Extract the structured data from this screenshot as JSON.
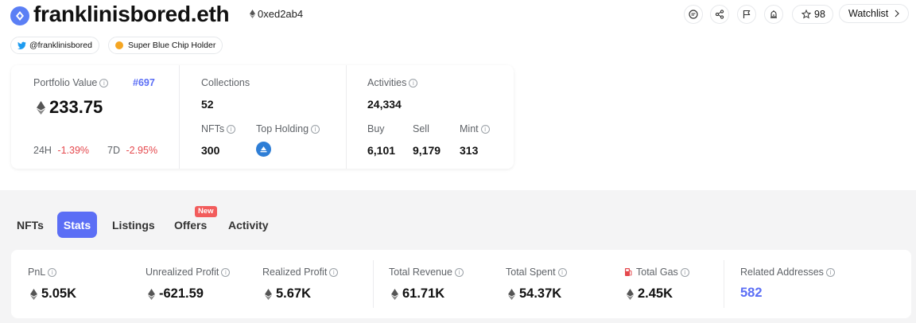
{
  "profile": {
    "name": "franklinisbored.eth",
    "address": "0xed2ab4",
    "twitter": "@franklinisbored",
    "badge": "Super Blue Chip Holder"
  },
  "actions": {
    "star_count": "98",
    "watchlist_label": "Watchlist",
    "icons": [
      "comment-icon",
      "share-icon",
      "flag-icon",
      "alert-icon",
      "star-icon",
      "chevron-right-icon"
    ]
  },
  "portfolio": {
    "label": "Portfolio Value",
    "rank": "#697",
    "value": "233.75",
    "h24_label": "24H",
    "h24_value": "-1.39%",
    "d7_label": "7D",
    "d7_value": "-2.95%"
  },
  "collections": {
    "label": "Collections",
    "value": "52",
    "nfts_label": "NFTs",
    "nfts_value": "300",
    "top_holding_label": "Top Holding"
  },
  "activities": {
    "label": "Activities",
    "value": "24,334",
    "buy_label": "Buy",
    "buy_value": "6,101",
    "sell_label": "Sell",
    "sell_value": "9,179",
    "mint_label": "Mint",
    "mint_value": "313"
  },
  "tabs": {
    "nfts": "NFTs",
    "stats": "Stats",
    "listings": "Listings",
    "offers": "Offers",
    "offers_badge": "New",
    "activity": "Activity",
    "active": "Stats"
  },
  "stats": {
    "pnl_label": "PnL",
    "pnl_value": "5.05K",
    "unrealized_label": "Unrealized Profit",
    "unrealized_value": "-621.59",
    "realized_label": "Realized Profit",
    "realized_value": "5.67K",
    "revenue_label": "Total Revenue",
    "revenue_value": "61.71K",
    "spent_label": "Total Spent",
    "spent_value": "54.37K",
    "gas_label": "Total Gas",
    "gas_value": "2.45K",
    "related_label": "Related Addresses",
    "related_value": "582"
  },
  "colors": {
    "accent": "#5b6ef5",
    "negative": "#e5484d",
    "brand_blue": "#3273dc",
    "badge_red": "#f25c5c"
  }
}
